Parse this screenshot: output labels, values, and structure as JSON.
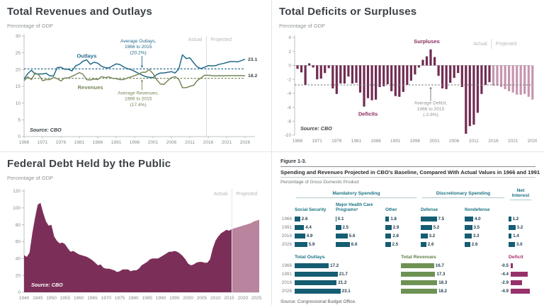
{
  "colors": {
    "teal": "#23698a",
    "green": "#75875a",
    "axis": "#aab0b4",
    "divider": "#d8dadc",
    "maroon": "#722b52",
    "maroonProjected": "#c795b0",
    "areaActual": "#7b2f58",
    "areaProjected": "#b9849e",
    "grayDash": "#6d7276",
    "annGray": "#8f9499",
    "maroonLabel": "#8c2a5c",
    "tableTeal": "#155d72",
    "tableGreen": "#6e9254",
    "tableMagenta": "#97316b"
  },
  "panels": {
    "revenues_outlays": {
      "title": "Total Revenues and Outlays",
      "unit": "Percentage of GDP"
    },
    "deficits_surpluses": {
      "title": "Total Deficits or Surpluses",
      "unit": "Percentage of GDP"
    },
    "federal_debt": {
      "title": "Federal Debt Held by the Public",
      "unit": "Percentage of GDP"
    }
  },
  "chart_data": [
    {
      "id": "revenues-outlays",
      "type": "line",
      "title": "Total Revenues and Outlays",
      "ylabel": "Percentage of GDP",
      "ylim": [
        0,
        30
      ],
      "yticks": [
        0,
        5,
        10,
        15,
        20,
        25,
        30
      ],
      "x_start": 1966,
      "xticks": [
        1966,
        1971,
        1976,
        1981,
        1986,
        1991,
        1996,
        2001,
        2006,
        2011,
        2016,
        2021,
        2026
      ],
      "actual_through": 2015,
      "actual_label": "Actual",
      "projected_label": "Projected",
      "source": "Source: CBO",
      "averages": [
        {
          "lines": [
            "Average Outlays,",
            "1966 to 2015",
            "(20.2%)"
          ],
          "value": 20.2,
          "series": "Outlays"
        },
        {
          "lines": [
            "Average Revenues,",
            "1966 to 2015",
            "(17.4%)"
          ],
          "value": 17.4,
          "series": "Revenues"
        }
      ],
      "series": [
        {
          "name": "Outlays",
          "end_label": "23.1",
          "values": [
            17.2,
            18.8,
            19.8,
            18.7,
            18.7,
            18.7,
            18.9,
            18.1,
            18.1,
            20.6,
            20.7,
            20.1,
            20.1,
            19.6,
            21.1,
            21.6,
            22.5,
            22.9,
            21.6,
            22.2,
            21.9,
            21.0,
            20.6,
            20.5,
            21.1,
            21.7,
            21.5,
            20.8,
            20.3,
            20.0,
            19.5,
            18.9,
            18.4,
            17.9,
            17.7,
            17.6,
            18.5,
            19.0,
            19.0,
            19.2,
            19.4,
            19.0,
            20.2,
            24.4,
            23.3,
            23.5,
            22.1,
            20.8,
            20.3,
            20.7,
            21.2,
            21.1,
            21.2,
            21.6,
            21.8,
            22.1,
            22.4,
            22.4,
            22.3,
            22.7,
            23.1
          ]
        },
        {
          "name": "Revenues",
          "end_label": "18.2",
          "values": [
            16.7,
            17.8,
            17.0,
            19.0,
            18.4,
            16.7,
            17.0,
            17.0,
            17.7,
            17.3,
            16.6,
            17.5,
            17.5,
            18.0,
            18.5,
            19.1,
            18.6,
            17.0,
            16.9,
            17.2,
            17.0,
            17.9,
            17.6,
            17.8,
            17.4,
            17.3,
            17.0,
            17.0,
            17.5,
            17.8,
            18.2,
            18.6,
            19.2,
            19.2,
            20.0,
            18.8,
            17.0,
            15.7,
            15.6,
            16.7,
            17.6,
            17.9,
            17.1,
            14.6,
            14.6,
            15.0,
            15.3,
            16.7,
            17.5,
            18.3,
            18.3,
            18.2,
            18.1,
            18.2,
            18.1,
            18.2,
            18.2,
            18.2,
            18.2,
            18.2,
            18.2
          ]
        }
      ]
    },
    {
      "id": "deficits-surpluses",
      "type": "bar",
      "title": "Total Deficits or Surpluses",
      "ylabel": "Percentage of GDP",
      "ylim": [
        -10,
        4
      ],
      "yticks": [
        4,
        2,
        0,
        -2,
        -4,
        -6,
        -8,
        -10
      ],
      "x_start": 1966,
      "xticks": [
        1966,
        1971,
        1976,
        1981,
        1986,
        1991,
        1996,
        2001,
        2006,
        2011,
        2016,
        2021,
        2026
      ],
      "actual_through": 2015,
      "actual_label": "Actual",
      "projected_label": "Projected",
      "source": "Source: CBO",
      "surpluses_label": "Surpluses",
      "deficits_label": "Deficits",
      "average": {
        "lines": [
          "Average Deficit,",
          "1966 to 2015",
          "(-2.8%)"
        ],
        "value": -2.8
      },
      "values": [
        -0.5,
        -1.0,
        -2.8,
        0.3,
        -0.3,
        -2.0,
        -1.9,
        -1.1,
        -0.4,
        -3.3,
        -4.1,
        -2.6,
        -2.6,
        -1.6,
        -2.6,
        -2.5,
        -3.9,
        -5.9,
        -4.7,
        -5.0,
        -4.9,
        -3.1,
        -3.0,
        -2.7,
        -3.7,
        -4.4,
        -4.5,
        -3.8,
        -2.8,
        -2.2,
        -1.3,
        -0.3,
        0.8,
        1.3,
        2.3,
        1.2,
        -1.5,
        -3.3,
        -3.4,
        -2.5,
        -1.8,
        -1.1,
        -3.1,
        -9.8,
        -8.7,
        -8.5,
        -6.8,
        -4.1,
        -2.8,
        -2.4,
        -2.9,
        -2.9,
        -3.1,
        -3.4,
        -3.7,
        -3.9,
        -4.2,
        -4.2,
        -4.1,
        -4.5,
        -4.9
      ]
    },
    {
      "id": "federal-debt",
      "type": "area",
      "title": "Federal Debt Held by the Public",
      "ylabel": "Percentage of GDP",
      "ylim": [
        0,
        120
      ],
      "yticks": [
        0,
        20,
        40,
        60,
        80,
        100,
        120
      ],
      "x_start": 1940,
      "xticks": [
        1940,
        1945,
        1950,
        1955,
        1960,
        1965,
        1970,
        1975,
        1980,
        1985,
        1990,
        1995,
        2000,
        2005,
        2010,
        2015,
        2020,
        2025
      ],
      "actual_through": 2016,
      "actual_label": "Actual",
      "projected_label": "Projected",
      "source": "Source: CBO",
      "values": [
        44,
        42,
        47,
        70,
        88,
        104,
        106,
        94,
        84,
        79,
        80,
        66,
        61,
        58,
        59,
        57,
        52,
        48,
        49,
        47,
        45,
        44,
        43,
        42,
        40,
        38,
        35,
        32,
        33,
        29,
        28,
        28,
        27,
        26,
        24,
        25,
        27,
        27,
        27,
        25,
        26,
        26,
        28,
        32,
        34,
        36,
        39,
        40,
        40,
        40,
        42,
        44,
        46,
        48,
        48,
        49,
        48,
        46,
        43,
        39,
        34,
        32,
        33,
        35,
        36,
        36,
        35,
        35,
        39,
        52,
        61,
        66,
        70,
        72,
        74,
        73,
        75,
        76,
        77,
        78,
        79,
        80,
        81,
        82,
        84,
        85,
        86
      ]
    },
    {
      "id": "spending-revenues-table",
      "type": "table",
      "figure_label": "Figure 1-3.",
      "title": "Spending and Revenues Projected in CBO's Baseline, Compared With Actual Values in 1966 and 1991",
      "unit": "Percentage of Gross Domestic Product",
      "source": "Source: Congressional Budget Office.",
      "years": [
        "1966",
        "1991",
        "2016",
        "2026"
      ],
      "groups": [
        {
          "label": "Mandatory Spending",
          "span": 3
        },
        {
          "label": "Discretionary Spending",
          "span": 2
        },
        {
          "label": "Net Interest",
          "span": 1
        }
      ],
      "columns": [
        {
          "label": "Social Security",
          "values": [
            2.6,
            4.4,
            4.9,
            5.9
          ]
        },
        {
          "label": "Major Health Care Programsᵃ",
          "values": [
            0.1,
            2.5,
            5.6,
            6.6
          ]
        },
        {
          "label": "Other",
          "values": [
            1.8,
            2.9,
            2.8,
            2.5
          ]
        },
        {
          "label": "Defense",
          "values": [
            7.5,
            5.2,
            3.2,
            2.6
          ]
        },
        {
          "label": "Nondefense",
          "values": [
            4.0,
            3.5,
            3.3,
            2.6
          ]
        },
        {
          "label": "",
          "values": [
            1.2,
            3.2,
            1.4,
            3.0
          ]
        }
      ],
      "totals": [
        {
          "label": "Total Outlays",
          "color": "teal",
          "values": [
            17.2,
            21.7,
            21.2,
            23.1
          ]
        },
        {
          "label": "Total Revenues",
          "color": "green",
          "values": [
            16.7,
            17.3,
            18.3,
            18.2
          ]
        },
        {
          "label": "Deficit",
          "color": "mag",
          "values": [
            -0.5,
            -4.4,
            -2.9,
            -4.9
          ]
        }
      ]
    }
  ]
}
